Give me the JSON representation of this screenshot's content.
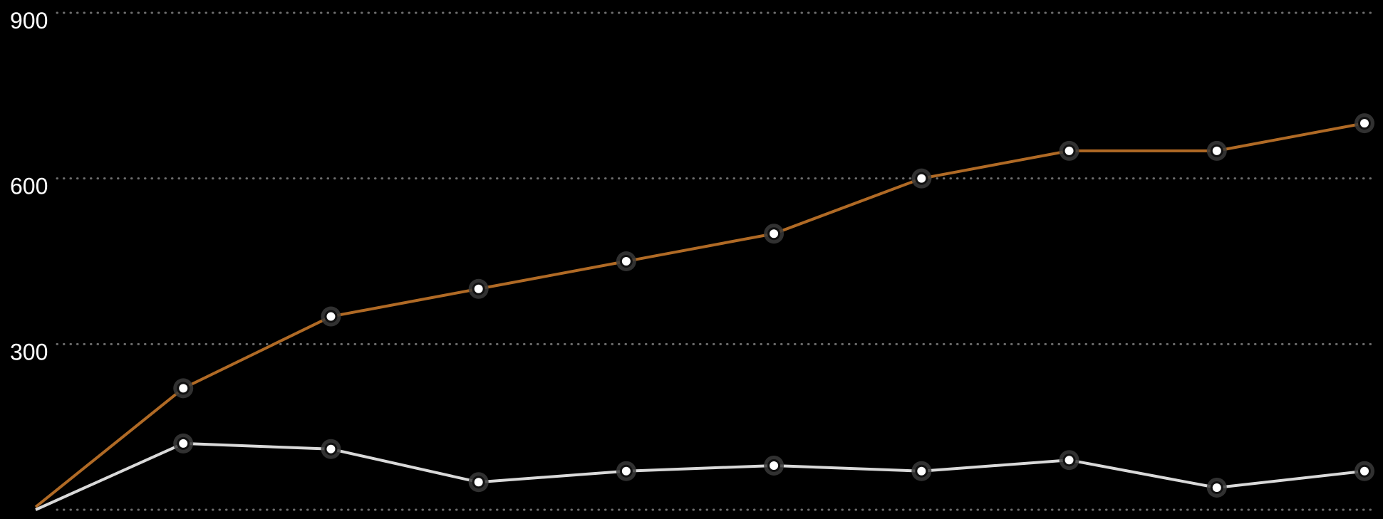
{
  "chart_data": {
    "type": "line",
    "x": [
      0,
      1,
      2,
      3,
      4,
      5,
      6,
      7,
      8,
      9
    ],
    "y_ticks": [
      "900",
      "600",
      "300"
    ],
    "ylim": [
      0,
      900
    ],
    "grid": true,
    "grid_style": "dotted",
    "series": [
      {
        "color": "#b06a25",
        "values": [
          5,
          220,
          350,
          400,
          450,
          500,
          600,
          650,
          650,
          700
        ]
      },
      {
        "color": "#d9d9d9",
        "values": [
          0,
          120,
          110,
          50,
          70,
          80,
          70,
          90,
          40,
          70
        ]
      }
    ]
  },
  "colors": {
    "background": "#000000",
    "grid": "#6e6e6e",
    "marker_fill": "#ffffff",
    "marker_halo": "#3a3a3a"
  }
}
